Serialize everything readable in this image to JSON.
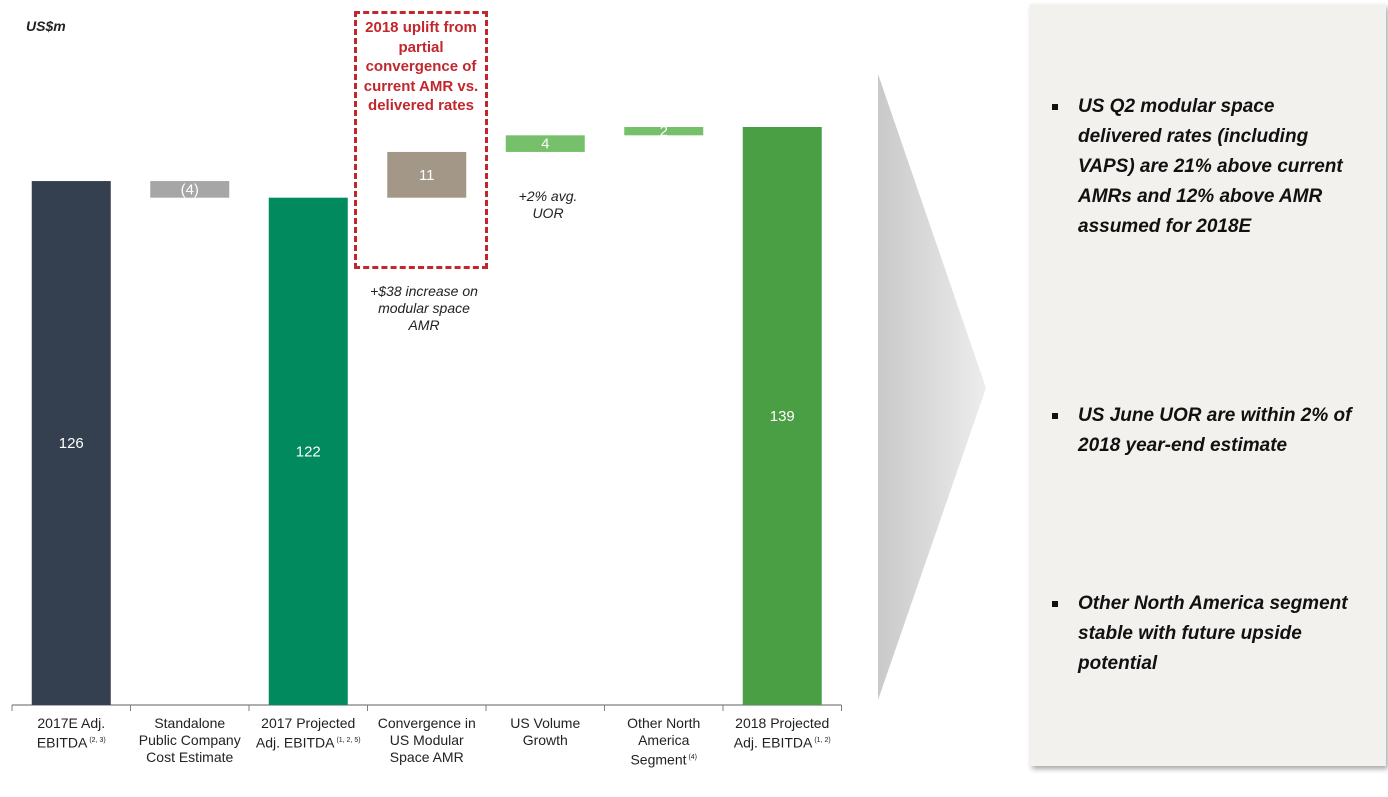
{
  "unit_label": "US$m",
  "chart_data": {
    "type": "waterfall",
    "ylim": [
      0,
      145
    ],
    "categories": [
      {
        "label": "2017E Adj. EBITDA",
        "sup": "(2, 3)"
      },
      {
        "label": "Standalone Public Company Cost Estimate",
        "sup": ""
      },
      {
        "label": "2017 Projected Adj. EBITDA",
        "sup": "(1, 2, 5)"
      },
      {
        "label": "Convergence in US Modular Space AMR",
        "sup": ""
      },
      {
        "label": "US Volume Growth",
        "sup": ""
      },
      {
        "label": "Other North America Segment",
        "sup": "(4)"
      },
      {
        "label": "2018 Projected Adj. EBITDA",
        "sup": "(1, 2)"
      }
    ],
    "bars": [
      {
        "kind": "total",
        "start": 0,
        "end": 126,
        "label": "126",
        "color": "#343f4f"
      },
      {
        "kind": "delta",
        "start": 126,
        "end": 122,
        "label": "(4)",
        "color": "#a6a6a6"
      },
      {
        "kind": "total",
        "start": 0,
        "end": 122,
        "label": "122",
        "color": "#008a5e"
      },
      {
        "kind": "delta",
        "start": 122,
        "end": 133,
        "label": "11",
        "color": "#a39787"
      },
      {
        "kind": "delta",
        "start": 133,
        "end": 137,
        "label": "4",
        "color": "#77c06b"
      },
      {
        "kind": "delta",
        "start": 137,
        "end": 139,
        "label": "2",
        "color": "#77c06b"
      },
      {
        "kind": "total",
        "start": 0,
        "end": 139,
        "label": "139",
        "color": "#4a9e44"
      }
    ],
    "annotations": [
      {
        "text": "+$38 increase on modular space AMR"
      },
      {
        "text": "+2% avg. UOR"
      }
    ],
    "highlight_text": "2018 uplift from partial convergence of current AMR vs. delivered rates",
    "highlight_color": "#c1272d"
  },
  "side_panel": {
    "bullets": [
      "US Q2 modular space delivered rates (including VAPS) are 21% above current AMRs and 12% above AMR assumed for 2018E",
      "US June UOR are within 2% of 2018 year-end estimate",
      "Other North America segment stable with future upside potential"
    ]
  }
}
